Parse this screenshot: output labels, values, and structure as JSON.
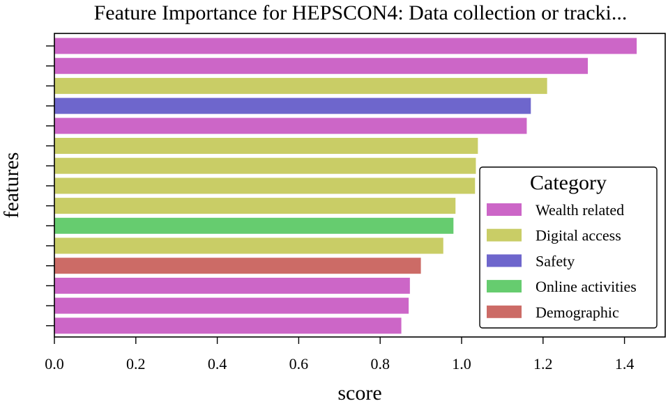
{
  "chart_data": {
    "type": "bar",
    "orientation": "horizontal",
    "title": "Feature Importance for HEPSCON4: Data collection or tracki...",
    "xlabel": "score",
    "ylabel": "features",
    "xlim": [
      0,
      1.5
    ],
    "xticks": [
      "0.0",
      "0.2",
      "0.4",
      "0.6",
      "0.8",
      "1.0",
      "1.2",
      "1.4"
    ],
    "grid": false,
    "bars": [
      {
        "value": 1.43,
        "category": "Wealth related"
      },
      {
        "value": 1.31,
        "category": "Wealth related"
      },
      {
        "value": 1.21,
        "category": "Digital access"
      },
      {
        "value": 1.17,
        "category": "Safety"
      },
      {
        "value": 1.16,
        "category": "Wealth related"
      },
      {
        "value": 1.04,
        "category": "Digital access"
      },
      {
        "value": 1.035,
        "category": "Digital access"
      },
      {
        "value": 1.033,
        "category": "Digital access"
      },
      {
        "value": 0.985,
        "category": "Digital access"
      },
      {
        "value": 0.98,
        "category": "Online activities"
      },
      {
        "value": 0.955,
        "category": "Digital access"
      },
      {
        "value": 0.9,
        "category": "Demographic"
      },
      {
        "value": 0.873,
        "category": "Wealth related"
      },
      {
        "value": 0.87,
        "category": "Wealth related"
      },
      {
        "value": 0.852,
        "category": "Wealth related"
      }
    ],
    "legend": {
      "title": "Category",
      "placement": "center-right",
      "entries": [
        {
          "label": "Wealth related",
          "color": "#cc66c7"
        },
        {
          "label": "Digital access",
          "color": "#c9cd66"
        },
        {
          "label": "Safety",
          "color": "#6e66cc"
        },
        {
          "label": "Online activities",
          "color": "#66cc6f"
        },
        {
          "label": "Demographic",
          "color": "#cc6b66"
        }
      ]
    }
  }
}
